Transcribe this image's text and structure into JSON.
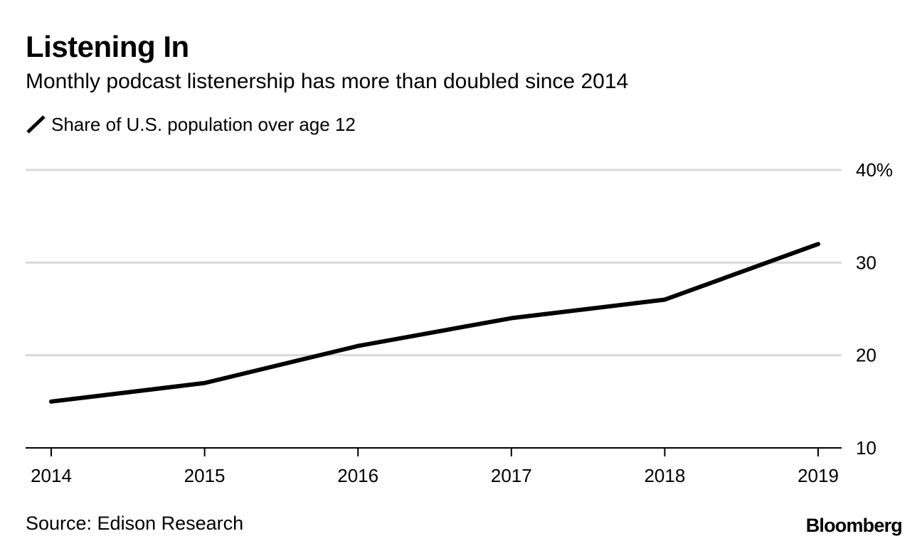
{
  "header": {
    "title": "Listening In",
    "subtitle": "Monthly podcast listenership has more than doubled since 2014"
  },
  "legend": {
    "label": "Share of U.S. population over age 12",
    "icon": "diagonal-line-icon"
  },
  "footer": {
    "source": "Source: Edison Research",
    "brand": "Bloomberg"
  },
  "colors": {
    "line": "#000000",
    "grid": "#d9d9d9",
    "axis": "#000000",
    "text": "#000000",
    "background": "#ffffff"
  },
  "chart_data": {
    "type": "line",
    "title": "Listening In",
    "subtitle": "Monthly podcast listenership has more than doubled since 2014",
    "xlabel": "",
    "ylabel": "",
    "x": [
      "2014",
      "2015",
      "2016",
      "2017",
      "2018",
      "2019"
    ],
    "series": [
      {
        "name": "Share of U.S. population over age 12",
        "values": [
          15,
          17,
          21,
          24,
          26,
          32
        ]
      }
    ],
    "ylim": [
      10,
      40
    ],
    "yticks": [
      10,
      20,
      30,
      40
    ],
    "ytick_labels": [
      "10",
      "20",
      "30",
      "40%"
    ],
    "y_axis_position": "right",
    "grid": true,
    "legend_position": "top-left"
  }
}
